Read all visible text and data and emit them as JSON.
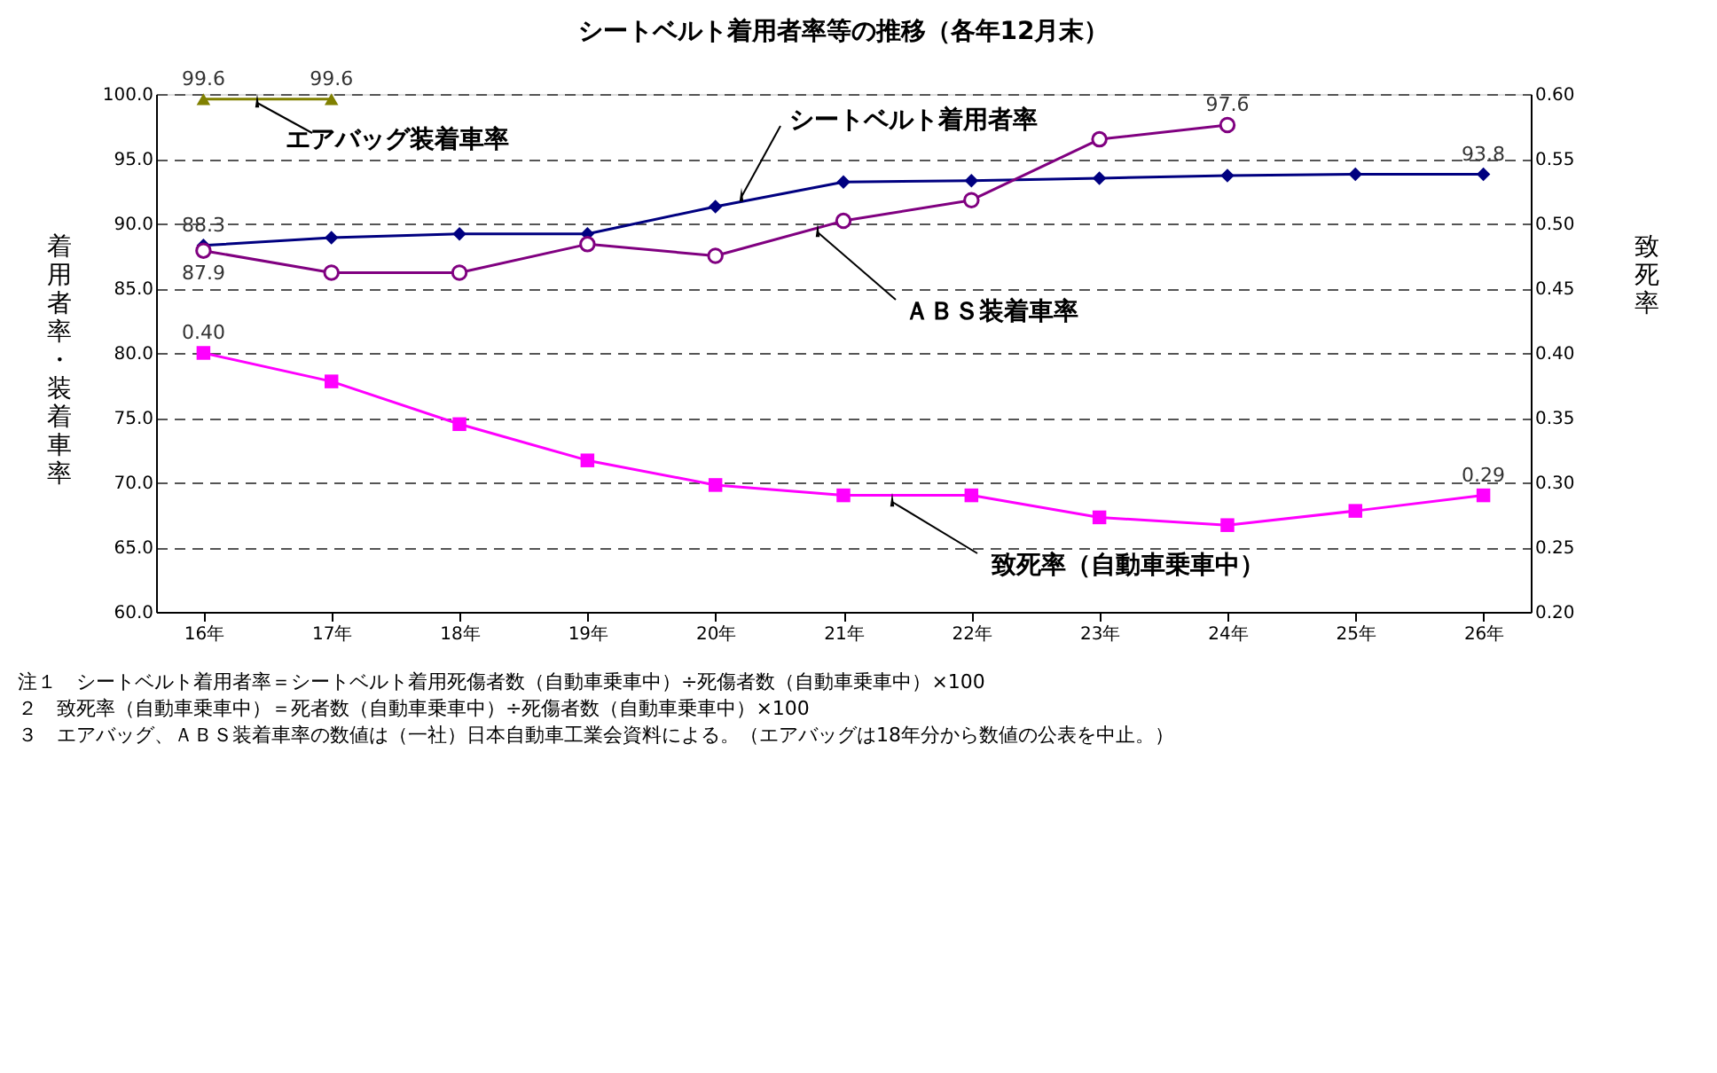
{
  "chart_data": {
    "type": "line",
    "title": "シートベルト着用者率等の推移（各年12月末）",
    "ylabel": "着用者率・装着車率",
    "y2label": "致死率",
    "categories": [
      "16年",
      "17年",
      "18年",
      "19年",
      "20年",
      "21年",
      "22年",
      "23年",
      "24年",
      "25年",
      "26年"
    ],
    "ylim": [
      60,
      100
    ],
    "yticks": [
      {
        "value": 60,
        "label": "60.0"
      },
      {
        "value": 65,
        "label": "65.0"
      },
      {
        "value": 70,
        "label": "70.0"
      },
      {
        "value": 75,
        "label": "75.0"
      },
      {
        "value": 80,
        "label": "80.0"
      },
      {
        "value": 85,
        "label": "85.0"
      },
      {
        "value": 90,
        "label": "90.0"
      },
      {
        "value": 95,
        "label": "95.0"
      },
      {
        "value": 100,
        "label": "100.0"
      }
    ],
    "y2lim": [
      0.2,
      0.6
    ],
    "y2ticks": [
      {
        "value": 0.2,
        "label": "0.20"
      },
      {
        "value": 0.25,
        "label": "0.25"
      },
      {
        "value": 0.3,
        "label": "0.30"
      },
      {
        "value": 0.35,
        "label": "0.35"
      },
      {
        "value": 0.4,
        "label": "0.40"
      },
      {
        "value": 0.45,
        "label": "0.45"
      },
      {
        "value": 0.5,
        "label": "0.50"
      },
      {
        "value": 0.55,
        "label": "0.55"
      },
      {
        "value": 0.6,
        "label": "0.60"
      }
    ],
    "grid": "y",
    "series": [
      {
        "name": "エアバッグ装着車率",
        "color": "#808000",
        "marker": "triangle",
        "values": [
          99.6,
          99.6,
          null,
          null,
          null,
          null,
          null,
          null,
          null,
          null,
          null
        ],
        "value_labels": [
          "99.6",
          "99.6",
          null,
          null,
          null,
          null,
          null,
          null,
          null,
          null,
          null
        ]
      },
      {
        "name": "シートベルト着用者率",
        "color": "#000080",
        "marker": "diamond",
        "values": [
          88.3,
          88.9,
          89.2,
          89.2,
          91.3,
          93.2,
          93.3,
          93.5,
          93.7,
          93.8,
          93.8
        ],
        "value_labels": [
          "88.3",
          null,
          null,
          null,
          null,
          null,
          null,
          null,
          null,
          null,
          "93.8"
        ]
      },
      {
        "name": "ＡＢＳ装着車率",
        "color": "#800080",
        "marker": "circle",
        "values": [
          87.9,
          86.2,
          86.2,
          88.4,
          87.5,
          90.2,
          91.8,
          96.5,
          97.6,
          null,
          null
        ],
        "value_labels": [
          "87.9",
          null,
          null,
          null,
          null,
          null,
          null,
          null,
          "97.6",
          null,
          null
        ]
      },
      {
        "name": "致死率（自動車乗車中）",
        "color": "#ff00ff",
        "marker": "square",
        "axis": "y2",
        "values": [
          0.4,
          0.378,
          0.345,
          0.317,
          0.298,
          0.29,
          0.29,
          0.273,
          0.267,
          0.278,
          0.29
        ],
        "value_labels": [
          "0.40",
          null,
          null,
          null,
          null,
          null,
          null,
          null,
          null,
          null,
          "0.29"
        ]
      }
    ],
    "annotations": [
      "注１　シートベルト着用者率＝シートベルト着用死傷者数（自動車乗車中）÷死傷者数（自動車乗車中）×100",
      "　２　致死率（自動車乗車中）＝死者数（自動車乗車中）÷死傷者数（自動車乗車中）×100",
      "　３　エアバッグ、ＡＢＳ装着車率の数値は（一社）日本自動車工業会資料による。（エアバッグは18年分から数値の公表を中止。）"
    ]
  }
}
